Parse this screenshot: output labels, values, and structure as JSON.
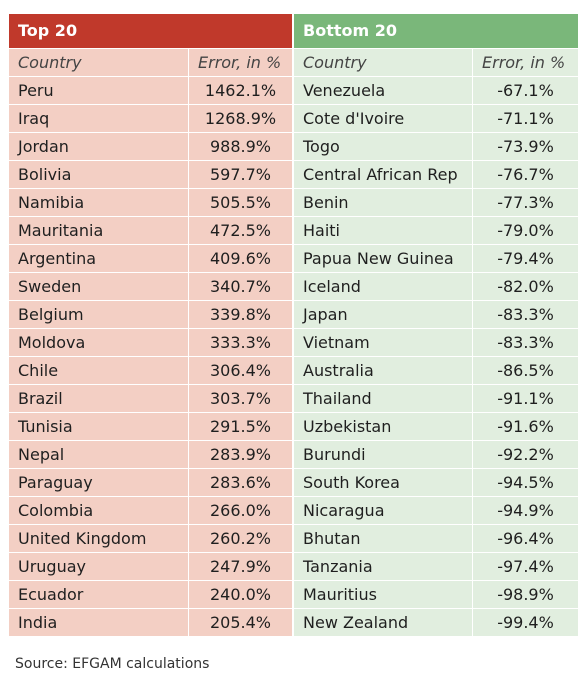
{
  "top": {
    "title": "Top 20",
    "col_country": "Country",
    "col_error": "Error, in %",
    "rows": [
      {
        "country": "Peru",
        "error": "1462.1%"
      },
      {
        "country": "Iraq",
        "error": "1268.9%"
      },
      {
        "country": "Jordan",
        "error": "988.9%"
      },
      {
        "country": "Bolivia",
        "error": "597.7%"
      },
      {
        "country": "Namibia",
        "error": "505.5%"
      },
      {
        "country": "Mauritania",
        "error": "472.5%"
      },
      {
        "country": "Argentina",
        "error": "409.6%"
      },
      {
        "country": "Sweden",
        "error": "340.7%"
      },
      {
        "country": "Belgium",
        "error": "339.8%"
      },
      {
        "country": "Moldova",
        "error": "333.3%"
      },
      {
        "country": "Chile",
        "error": "306.4%"
      },
      {
        "country": "Brazil",
        "error": "303.7%"
      },
      {
        "country": "Tunisia",
        "error": "291.5%"
      },
      {
        "country": "Nepal",
        "error": "283.9%"
      },
      {
        "country": "Paraguay",
        "error": "283.6%"
      },
      {
        "country": "Colombia",
        "error": "266.0%"
      },
      {
        "country": "United Kingdom",
        "error": "260.2%"
      },
      {
        "country": "Uruguay",
        "error": "247.9%"
      },
      {
        "country": "Ecuador",
        "error": "240.0%"
      },
      {
        "country": "India",
        "error": "205.4%"
      }
    ]
  },
  "bottom": {
    "title": "Bottom 20",
    "col_country": "Country",
    "col_error": "Error, in %",
    "rows": [
      {
        "country": "Venezuela",
        "error": "-67.1%"
      },
      {
        "country": "Cote d'Ivoire",
        "error": "-71.1%"
      },
      {
        "country": "Togo",
        "error": "-73.9%"
      },
      {
        "country": "Central African Rep",
        "error": "-76.7%"
      },
      {
        "country": "Benin",
        "error": "-77.3%"
      },
      {
        "country": "Haiti",
        "error": "-79.0%"
      },
      {
        "country": "Papua New Guinea",
        "error": "-79.4%"
      },
      {
        "country": "Iceland",
        "error": "-82.0%"
      },
      {
        "country": "Japan",
        "error": "-83.3%"
      },
      {
        "country": "Vietnam",
        "error": "-83.3%"
      },
      {
        "country": "Australia",
        "error": "-86.5%"
      },
      {
        "country": "Thailand",
        "error": "-91.1%"
      },
      {
        "country": "Uzbekistan",
        "error": "-91.6%"
      },
      {
        "country": "Burundi",
        "error": "-92.2%"
      },
      {
        "country": "South Korea",
        "error": "-94.5%"
      },
      {
        "country": "Nicaragua",
        "error": "-94.9%"
      },
      {
        "country": "Bhutan",
        "error": "-96.4%"
      },
      {
        "country": "Tanzania",
        "error": "-97.4%"
      },
      {
        "country": "Mauritius",
        "error": "-98.9%"
      },
      {
        "country": "New Zealand",
        "error": "-99.4%"
      }
    ]
  },
  "source": "Source: EFGAM calculations",
  "colors": {
    "top_header": "#c0392b",
    "top_body": "#f3cfc4",
    "bottom_header": "#7ab77a",
    "bottom_body": "#e1eedf"
  }
}
